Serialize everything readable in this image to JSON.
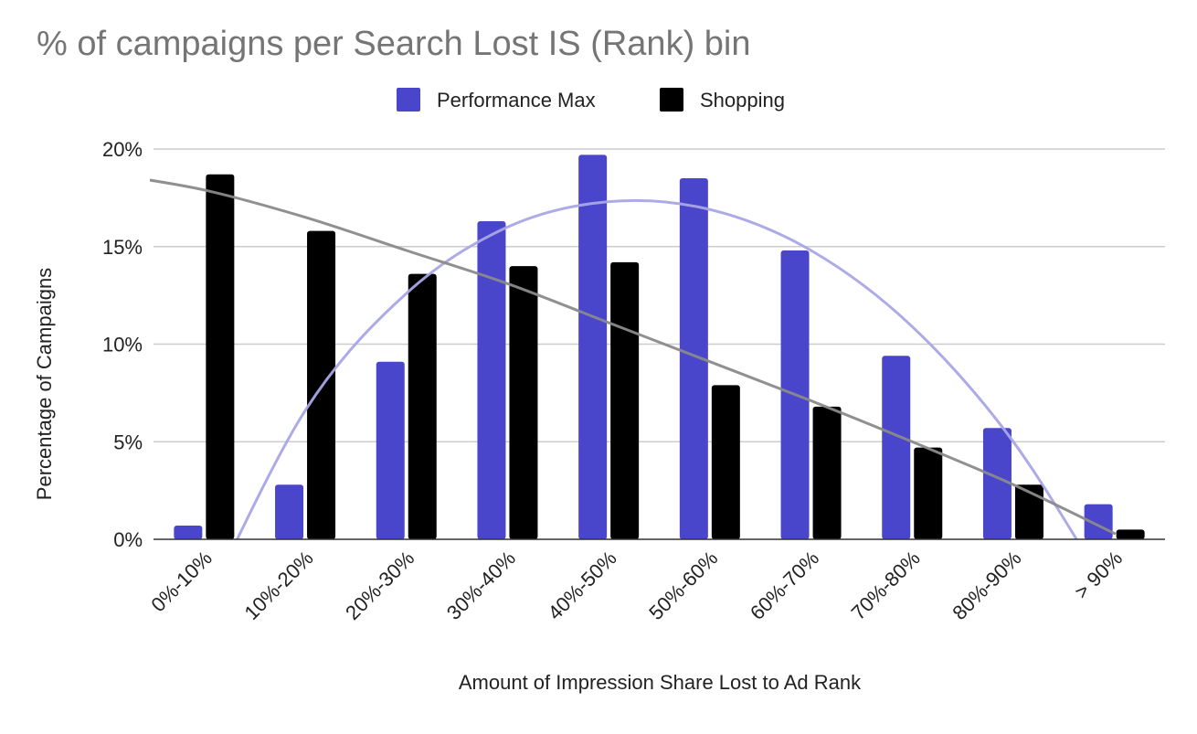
{
  "chart_data": {
    "type": "bar",
    "title": "% of campaigns per Search Lost IS (Rank) bin",
    "xlabel": "Amount of Impression Share Lost to Ad Rank",
    "ylabel": "Percentage of Campaigns",
    "categories": [
      "0%-10%",
      "10%-20%",
      "20%-30%",
      "30%-40%",
      "40%-50%",
      "50%-60%",
      "60%-70%",
      "70%-80%",
      "80%-90%",
      "> 90%"
    ],
    "series": [
      {
        "name": "Performance Max",
        "color": "#4a46cc",
        "values": [
          0.7,
          2.8,
          9.1,
          16.3,
          19.7,
          18.5,
          14.8,
          9.4,
          5.7,
          1.8
        ]
      },
      {
        "name": "Shopping",
        "color": "#000000",
        "values": [
          18.7,
          15.8,
          13.6,
          14.0,
          14.2,
          7.9,
          6.8,
          4.7,
          2.8,
          0.5
        ]
      }
    ],
    "trendlines": [
      {
        "series": "Performance Max",
        "type": "polynomial",
        "color": "#a9a6e6",
        "points": [
          [
            0,
            -3.5
          ],
          [
            1,
            6.6
          ],
          [
            2,
            12.6
          ],
          [
            3,
            16.0
          ],
          [
            4,
            17.3
          ],
          [
            5,
            16.9
          ],
          [
            6,
            14.8
          ],
          [
            7,
            10.9
          ],
          [
            8,
            5.0
          ],
          [
            9,
            -3.2
          ]
        ]
      },
      {
        "series": "Shopping",
        "type": "polynomial",
        "color": "#8a8a8a",
        "points": [
          [
            -0.9,
            18.7
          ],
          [
            0,
            17.9
          ],
          [
            1,
            16.5
          ],
          [
            2,
            14.8
          ],
          [
            3,
            13.1
          ],
          [
            4,
            11.1
          ],
          [
            5,
            9.1
          ],
          [
            6,
            7.1
          ],
          [
            7,
            5.0
          ],
          [
            8,
            2.8
          ],
          [
            9,
            0.3
          ]
        ]
      }
    ],
    "yticks": [
      "0%",
      "5%",
      "10%",
      "15%",
      "20%"
    ],
    "ylim": [
      0,
      20
    ],
    "grid": true,
    "legend": "top-center"
  }
}
